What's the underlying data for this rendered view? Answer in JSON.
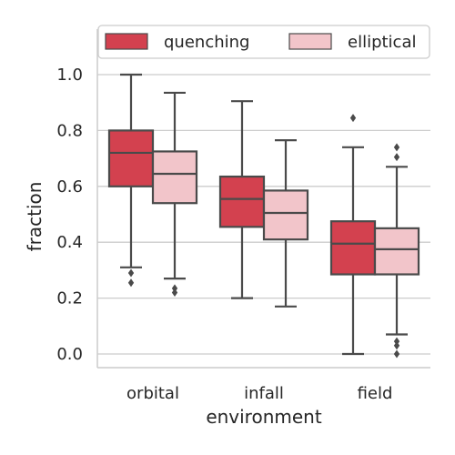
{
  "chart_data": {
    "type": "boxplot",
    "title": "",
    "xlabel": "environment",
    "ylabel": "fraction",
    "ylim": [
      -0.05,
      1.07
    ],
    "yticks": [
      0.0,
      0.2,
      0.4,
      0.6,
      0.8,
      1.0
    ],
    "ytick_labels": [
      "0.0",
      "0.2",
      "0.4",
      "0.6",
      "0.8",
      "1.0"
    ],
    "grid": "horizontal",
    "legend_position": "top",
    "categories": [
      "orbital",
      "infall",
      "field"
    ],
    "series": [
      {
        "name": "quenching",
        "color": "#d3414f",
        "boxes": [
          {
            "whisker_low": 0.31,
            "q1": 0.6,
            "median": 0.72,
            "q3": 0.8,
            "whisker_high": 1.0,
            "outliers": [
              0.29,
              0.255
            ]
          },
          {
            "whisker_low": 0.2,
            "q1": 0.455,
            "median": 0.555,
            "q3": 0.635,
            "whisker_high": 0.905,
            "outliers": []
          },
          {
            "whisker_low": 0.0,
            "q1": 0.285,
            "median": 0.395,
            "q3": 0.475,
            "whisker_high": 0.74,
            "outliers": [
              0.845
            ]
          }
        ]
      },
      {
        "name": "elliptical",
        "color": "#f2c5ca",
        "boxes": [
          {
            "whisker_low": 0.27,
            "q1": 0.54,
            "median": 0.645,
            "q3": 0.725,
            "whisker_high": 0.935,
            "outliers": [
              0.235,
              0.22
            ]
          },
          {
            "whisker_low": 0.17,
            "q1": 0.41,
            "median": 0.505,
            "q3": 0.585,
            "whisker_high": 0.765,
            "outliers": []
          },
          {
            "whisker_low": 0.07,
            "q1": 0.285,
            "median": 0.375,
            "q3": 0.45,
            "whisker_high": 0.67,
            "outliers": [
              0.74,
              0.705,
              0.045,
              0.03,
              0.0
            ]
          }
        ]
      }
    ]
  }
}
